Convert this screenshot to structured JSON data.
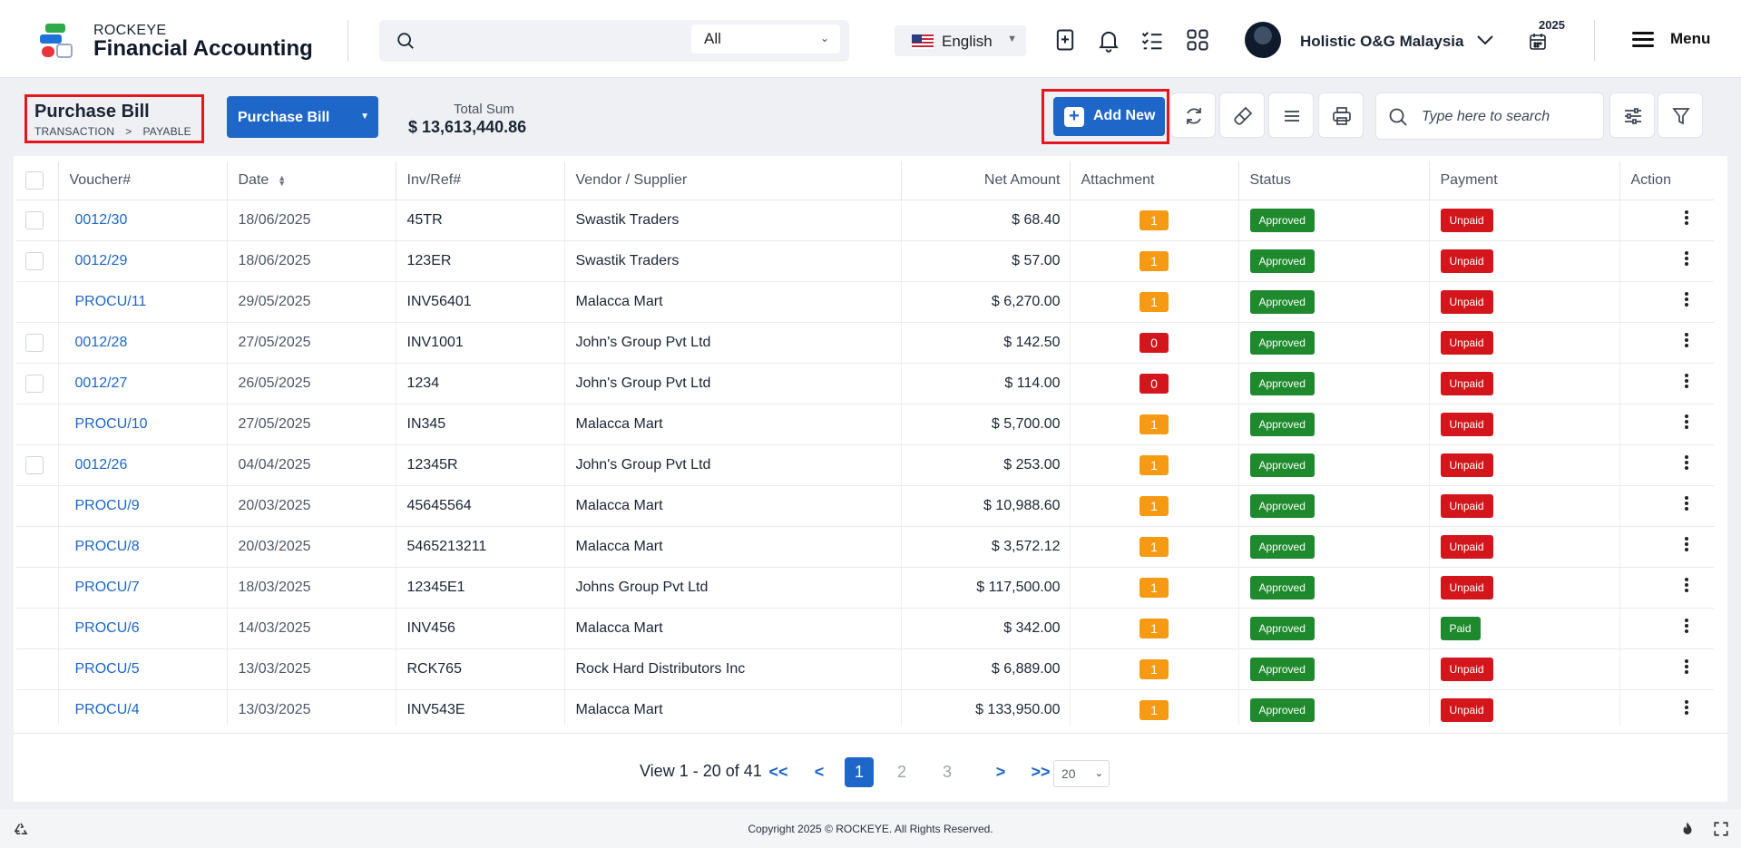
{
  "brand": {
    "top": "ROCKEYE",
    "main": "Financial Accounting"
  },
  "header": {
    "scope_value": "All",
    "language": "English",
    "user_name": "Holistic O&G Malaysia",
    "year": "2025",
    "menu_label": "Menu"
  },
  "page": {
    "title": "Purchase Bill",
    "crumb_1": "TRANSACTION",
    "crumb_sep": ">",
    "crumb_2": "PAYABLE",
    "module_select": "Purchase Bill",
    "total_label": "Total Sum",
    "total_value": "$ 13,613,440.86",
    "add_new": "Add New",
    "search_placeholder": "Type here to search"
  },
  "table": {
    "columns": [
      "Voucher#",
      "Date",
      "Inv/Ref#",
      "Vendor / Supplier",
      "Net Amount",
      "Attachment",
      "Status",
      "Payment",
      "Action"
    ],
    "rows": [
      {
        "checkbox": true,
        "voucher": "0012/30",
        "date": "18/06/2025",
        "inv": "45TR",
        "vendor": "Swastik Traders",
        "amount": "$ 68.40",
        "attachment": "1",
        "att_color": "orange",
        "status": "Approved",
        "payment": "Unpaid"
      },
      {
        "checkbox": true,
        "voucher": "0012/29",
        "date": "18/06/2025",
        "inv": "123ER",
        "vendor": "Swastik Traders",
        "amount": "$ 57.00",
        "attachment": "1",
        "att_color": "orange",
        "status": "Approved",
        "payment": "Unpaid"
      },
      {
        "checkbox": false,
        "voucher": "PROCU/11",
        "date": "29/05/2025",
        "inv": "INV56401",
        "vendor": "Malacca Mart",
        "amount": "$ 6,270.00",
        "attachment": "1",
        "att_color": "orange",
        "status": "Approved",
        "payment": "Unpaid"
      },
      {
        "checkbox": true,
        "voucher": "0012/28",
        "date": "27/05/2025",
        "inv": "INV1001",
        "vendor": "John's Group Pvt Ltd",
        "amount": "$ 142.50",
        "attachment": "0",
        "att_color": "red",
        "status": "Approved",
        "payment": "Unpaid"
      },
      {
        "checkbox": true,
        "voucher": "0012/27",
        "date": "26/05/2025",
        "inv": "1234",
        "vendor": "John's Group Pvt Ltd",
        "amount": "$ 114.00",
        "attachment": "0",
        "att_color": "red",
        "status": "Approved",
        "payment": "Unpaid"
      },
      {
        "checkbox": false,
        "voucher": "PROCU/10",
        "date": "27/05/2025",
        "inv": "IN345",
        "vendor": "Malacca Mart",
        "amount": "$ 5,700.00",
        "attachment": "1",
        "att_color": "orange",
        "status": "Approved",
        "payment": "Unpaid"
      },
      {
        "checkbox": true,
        "voucher": "0012/26",
        "date": "04/04/2025",
        "inv": "12345R",
        "vendor": "John's Group Pvt Ltd",
        "amount": "$ 253.00",
        "attachment": "1",
        "att_color": "orange",
        "status": "Approved",
        "payment": "Unpaid"
      },
      {
        "checkbox": false,
        "voucher": "PROCU/9",
        "date": "20/03/2025",
        "inv": "45645564",
        "vendor": "Malacca Mart",
        "amount": "$ 10,988.60",
        "attachment": "1",
        "att_color": "orange",
        "status": "Approved",
        "payment": "Unpaid"
      },
      {
        "checkbox": false,
        "voucher": "PROCU/8",
        "date": "20/03/2025",
        "inv": "5465213211",
        "vendor": "Malacca Mart",
        "amount": "$ 3,572.12",
        "attachment": "1",
        "att_color": "orange",
        "status": "Approved",
        "payment": "Unpaid"
      },
      {
        "checkbox": false,
        "voucher": "PROCU/7",
        "date": "18/03/2025",
        "inv": "12345E1",
        "vendor": "Johns Group Pvt Ltd",
        "amount": "$ 117,500.00",
        "attachment": "1",
        "att_color": "orange",
        "status": "Approved",
        "payment": "Unpaid"
      },
      {
        "checkbox": false,
        "voucher": "PROCU/6",
        "date": "14/03/2025",
        "inv": "INV456",
        "vendor": "Malacca Mart",
        "amount": "$ 342.00",
        "attachment": "1",
        "att_color": "orange",
        "status": "Approved",
        "payment": "Paid"
      },
      {
        "checkbox": false,
        "voucher": "PROCU/5",
        "date": "13/03/2025",
        "inv": "RCK765",
        "vendor": "Rock Hard Distributors Inc",
        "amount": "$ 6,889.00",
        "attachment": "1",
        "att_color": "orange",
        "status": "Approved",
        "payment": "Unpaid"
      },
      {
        "checkbox": false,
        "voucher": "PROCU/4",
        "date": "13/03/2025",
        "inv": "INV543E",
        "vendor": "Malacca Mart",
        "amount": "$ 133,950.00",
        "attachment": "1",
        "att_color": "orange",
        "status": "Approved",
        "payment": "Unpaid"
      }
    ]
  },
  "pagination": {
    "view_text": "View 1 - 20 of 41",
    "first": "<<",
    "prev": "<",
    "pages": [
      "1",
      "2",
      "3"
    ],
    "current_page": "1",
    "next": ">",
    "last": ">>",
    "per_page": "20"
  },
  "footer": {
    "copyright": "Copyright 2025 © ROCKEYE. All Rights Reserved."
  },
  "colors": {
    "primary": "#1e66c8",
    "highlight_border": "#e5161d",
    "approved": "#1e8a2d",
    "unpaid": "#d3161c",
    "attachment": "#f59a12"
  },
  "icons": [
    "search-icon",
    "bookmark-add-icon",
    "bell-icon",
    "checklist-icon",
    "grid-icon",
    "calendar-icon",
    "refresh-icon",
    "brush-icon",
    "list-icon",
    "print-icon",
    "filter-sliders-icon",
    "funnel-icon",
    "kebab-icon",
    "recycle-icon",
    "fire-icon",
    "fullscreen-icon"
  ]
}
